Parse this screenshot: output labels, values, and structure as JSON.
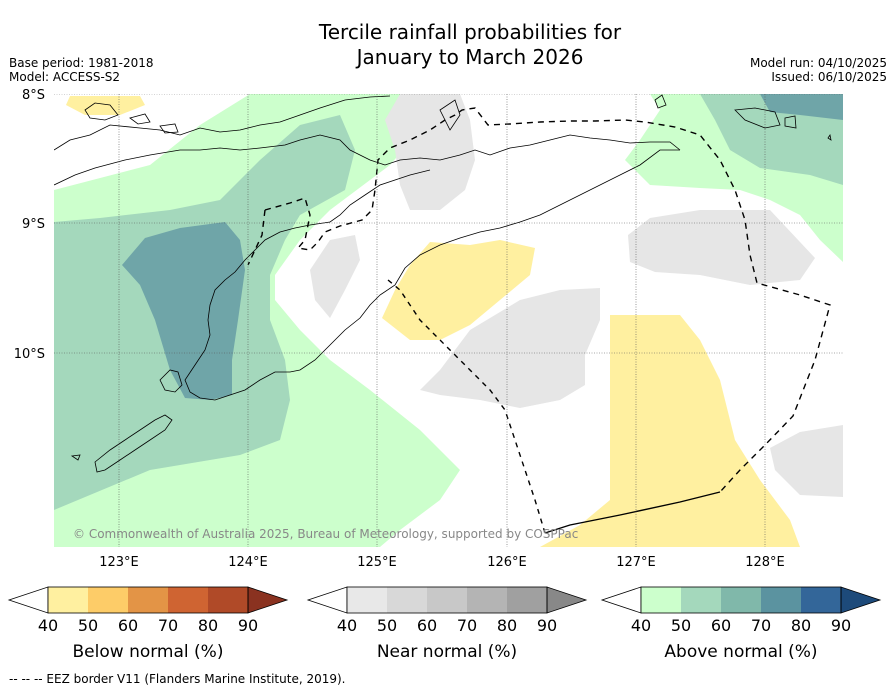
{
  "title_line1": "Tercile rainfall probabilities for",
  "title_line2": "January to March 2026",
  "base_period": "Base period: 1981-2018",
  "model": "Model: ACCESS-S2",
  "model_run": "Model run: 04/10/2025",
  "issued": "Issued: 06/10/2025",
  "lat_labels": [
    "8°S",
    "9°S",
    "10°S"
  ],
  "lon_labels": [
    "123°E",
    "124°E",
    "125°E",
    "126°E",
    "127°E",
    "128°E"
  ],
  "copyright": "© Commonwealth of Australia 2025, Bureau of Meteorology, supported by COSPPac",
  "colorbars": [
    {
      "label": "Below normal (%)",
      "ticks": [
        "40",
        "50",
        "60",
        "70",
        "80",
        "90"
      ],
      "colors": [
        "#ffffff",
        "#fff0a0",
        "#fdcc68",
        "#e39446",
        "#cf6432",
        "#b04a28",
        "#8a3220"
      ]
    },
    {
      "label": "Near normal (%)",
      "ticks": [
        "40",
        "50",
        "60",
        "70",
        "80",
        "90"
      ],
      "colors": [
        "#ffffff",
        "#e8e8e8",
        "#d8d8d8",
        "#c8c8c8",
        "#b4b4b4",
        "#a0a0a0",
        "#888888"
      ]
    },
    {
      "label": "Above normal (%)",
      "ticks": [
        "40",
        "50",
        "60",
        "70",
        "80",
        "90"
      ],
      "colors": [
        "#ffffff",
        "#ccffcc",
        "#a4d8bc",
        "#80b8aa",
        "#5b93a0",
        "#336699",
        "#1d4a7a"
      ]
    }
  ],
  "footer": "--  --  -- EEZ border V11 (Flanders Marine Institute, 2019)."
}
